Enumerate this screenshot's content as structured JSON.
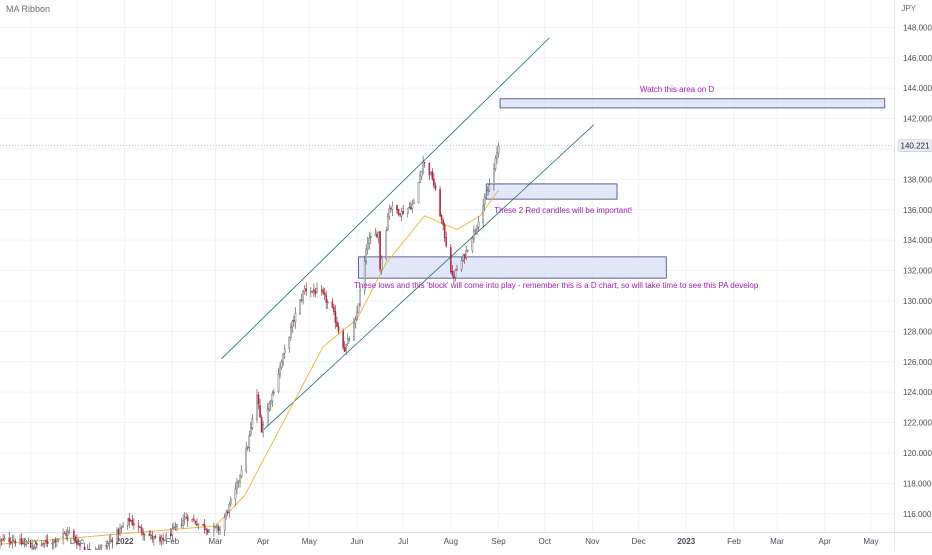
{
  "indicator": {
    "name": "MA Ribbon"
  },
  "chart_data": {
    "type": "candlestick",
    "currency": "JPY",
    "last_price": "140.221",
    "ylim": [
      114.8,
      149.8
    ],
    "y_ticks": [
      "116.000",
      "118.000",
      "120.000",
      "122.000",
      "124.000",
      "126.000",
      "128.000",
      "130.000",
      "132.000",
      "134.000",
      "136.000",
      "138.000",
      "140.000",
      "142.000",
      "144.000",
      "146.000",
      "148.000"
    ],
    "y_tick_values": [
      116,
      118,
      120,
      122,
      124,
      126,
      128,
      130,
      132,
      134,
      136,
      138,
      140,
      142,
      144,
      146,
      148
    ],
    "x_ticks": [
      {
        "label": "Nov",
        "date": "2021-11-01"
      },
      {
        "label": "Dec",
        "date": "2021-12-01"
      },
      {
        "label": "2022",
        "date": "2022-01-01",
        "bold": true
      },
      {
        "label": "Feb",
        "date": "2022-02-01"
      },
      {
        "label": "Mar",
        "date": "2022-03-01"
      },
      {
        "label": "Apr",
        "date": "2022-04-01"
      },
      {
        "label": "May",
        "date": "2022-05-01"
      },
      {
        "label": "Jun",
        "date": "2022-06-01"
      },
      {
        "label": "Jul",
        "date": "2022-07-01"
      },
      {
        "label": "Aug",
        "date": "2022-08-01"
      },
      {
        "label": "Sep",
        "date": "2022-09-01"
      },
      {
        "label": "Oct",
        "date": "2022-10-01"
      },
      {
        "label": "Nov",
        "date": "2022-11-01"
      },
      {
        "label": "Dec",
        "date": "2022-12-01"
      },
      {
        "label": "2023",
        "date": "2023-01-01",
        "bold": true
      },
      {
        "label": "Feb",
        "date": "2023-02-01"
      },
      {
        "label": "Mar",
        "date": "2023-03-01"
      },
      {
        "label": "Apr",
        "date": "2023-04-01"
      },
      {
        "label": "May",
        "date": "2023-05-01"
      }
    ],
    "x_range": [
      "2021-10-12",
      "2023-05-16"
    ],
    "price_path": [
      [
        "2021-10-12",
        114.2
      ],
      [
        "2021-10-20",
        114.3
      ],
      [
        "2021-11-01",
        113.8
      ],
      [
        "2021-11-15",
        114.2
      ],
      [
        "2021-11-26",
        114.8
      ],
      [
        "2021-12-06",
        113.5
      ],
      [
        "2021-12-20",
        113.9
      ],
      [
        "2022-01-04",
        115.6
      ],
      [
        "2022-01-12",
        114.9
      ],
      [
        "2022-01-24",
        114.1
      ],
      [
        "2022-02-02",
        114.9
      ],
      [
        "2022-02-10",
        115.8
      ],
      [
        "2022-02-24",
        115.0
      ],
      [
        "2022-03-04",
        115.0
      ],
      [
        "2022-03-14",
        117.5
      ],
      [
        "2022-03-22",
        120.5
      ],
      [
        "2022-03-28",
        123.8
      ],
      [
        "2022-03-31",
        121.6
      ],
      [
        "2022-04-08",
        124.2
      ],
      [
        "2022-04-20",
        128.5
      ],
      [
        "2022-04-28",
        130.8
      ],
      [
        "2022-05-09",
        130.5
      ],
      [
        "2022-05-16",
        129.4
      ],
      [
        "2022-05-24",
        126.8
      ],
      [
        "2022-05-31",
        128.6
      ],
      [
        "2022-06-08",
        133.9
      ],
      [
        "2022-06-15",
        134.5
      ],
      [
        "2022-06-16",
        132.2
      ],
      [
        "2022-06-22",
        136.2
      ],
      [
        "2022-06-30",
        135.8
      ],
      [
        "2022-07-08",
        136.4
      ],
      [
        "2022-07-14",
        139.2
      ],
      [
        "2022-07-20",
        138.1
      ],
      [
        "2022-07-28",
        134.3
      ],
      [
        "2022-08-02",
        131.5
      ],
      [
        "2022-08-10",
        133.0
      ],
      [
        "2022-08-17",
        134.8
      ],
      [
        "2022-08-24",
        136.9
      ],
      [
        "2022-08-29",
        138.7
      ],
      [
        "2022-09-01",
        140.2
      ]
    ],
    "ma_path": [
      [
        "2021-10-12",
        114.0
      ],
      [
        "2022-01-01",
        114.7
      ],
      [
        "2022-03-01",
        115.2
      ],
      [
        "2022-03-20",
        117.2
      ],
      [
        "2022-04-15",
        122.2
      ],
      [
        "2022-05-10",
        127.0
      ],
      [
        "2022-06-01",
        128.8
      ],
      [
        "2022-06-20",
        132.5
      ],
      [
        "2022-07-15",
        135.6
      ],
      [
        "2022-08-05",
        134.7
      ],
      [
        "2022-08-20",
        135.6
      ],
      [
        "2022-09-01",
        137.3
      ]
    ],
    "channel_upper": [
      [
        "2022-03-05",
        126.2
      ],
      [
        "2022-10-04",
        147.3
      ]
    ],
    "channel_lower": [
      [
        "2022-04-01",
        121.5
      ],
      [
        "2022-11-02",
        141.6
      ]
    ],
    "zones": [
      {
        "name": "watch-zone",
        "from": "2022-09-02",
        "to": "2023-05-10",
        "low": 142.7,
        "high": 143.3
      },
      {
        "name": "red-candles-zone",
        "from": "2022-08-24",
        "to": "2022-11-17",
        "low": 136.7,
        "high": 137.7
      },
      {
        "name": "lows-block-zone",
        "from": "2022-06-02",
        "to": "2022-12-19",
        "low": 131.5,
        "high": 132.9
      }
    ],
    "annotations": [
      {
        "name": "watch-area-note",
        "text": "Watch this area on D",
        "date": "2022-12-26",
        "price": 143.95,
        "anchor": "middle"
      },
      {
        "name": "red-candles-note",
        "text": "These 2 Red candles will be important!",
        "date": "2022-10-13",
        "price": 136.0,
        "anchor": "middle"
      },
      {
        "name": "lows-block-note",
        "text": "These lows and this 'block' will come into play - remember this is a D chart, so will take time to see this PA develop",
        "date": "2022-05-30",
        "price": 131.05,
        "anchor": "start"
      }
    ],
    "colors": {
      "up_body": "#ffffff",
      "up_border": "#4a4a4a",
      "down_body": "#b2283a",
      "ma": "#f0b232",
      "channel": "#1d6a7a",
      "zone_fill": "#dde3f8",
      "zone_stroke": "#3b3d7a",
      "annotation": "#a020b4",
      "price_line": "#9aa0ab",
      "grid": "#f1f3f6",
      "axis_text": "#4a4d57"
    }
  }
}
